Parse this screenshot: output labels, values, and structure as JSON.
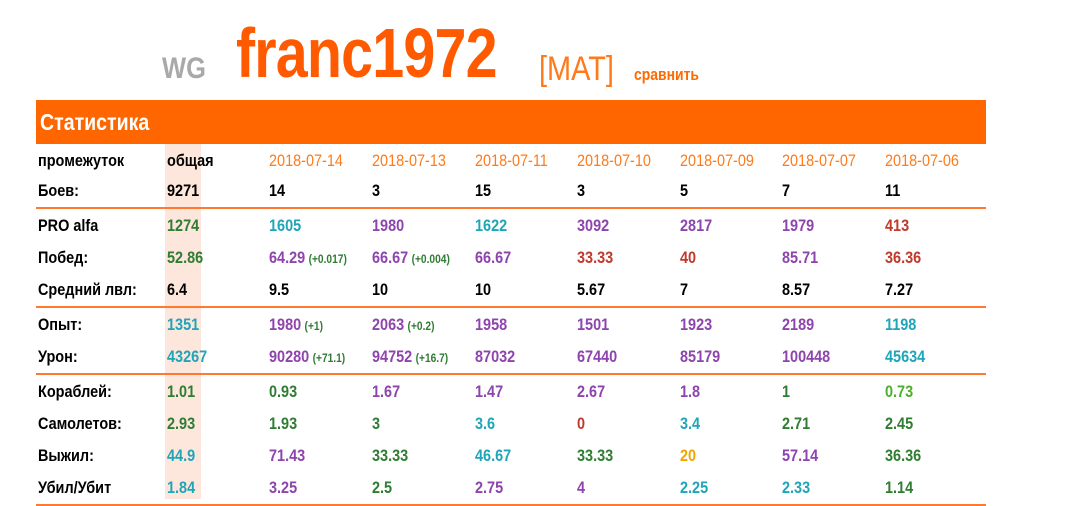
{
  "header": {
    "server": "WG",
    "nickname": "franc1972",
    "clan": "[MAT]",
    "compare_link": "сравнить"
  },
  "stats": {
    "title": "Статистика",
    "period_label": "промежуток",
    "columns": [
      "общая",
      "2018-07-14",
      "2018-07-13",
      "2018-07-11",
      "2018-07-10",
      "2018-07-09",
      "2018-07-07",
      "2018-07-06"
    ],
    "battles": {
      "label": "Боев:",
      "values": [
        "9271",
        "14",
        "3",
        "15",
        "3",
        "5",
        "7",
        "11"
      ]
    },
    "groups": [
      [
        {
          "label": "PRO alfa",
          "cells": [
            {
              "v": "1274",
              "c": "#2e7d32"
            },
            {
              "v": "1605",
              "c": "#1fa5b8"
            },
            {
              "v": "1980",
              "c": "#8e44ad"
            },
            {
              "v": "1622",
              "c": "#1fa5b8"
            },
            {
              "v": "3092",
              "c": "#8e44ad"
            },
            {
              "v": "2817",
              "c": "#8e44ad"
            },
            {
              "v": "1979",
              "c": "#8e44ad"
            },
            {
              "v": "413",
              "c": "#c0392b"
            }
          ]
        },
        {
          "label": "Побед:",
          "cells": [
            {
              "v": "52.86",
              "c": "#2e7d32"
            },
            {
              "v": "64.29",
              "c": "#8e44ad",
              "d": "(+0.017)"
            },
            {
              "v": "66.67",
              "c": "#8e44ad",
              "d": "(+0.004)"
            },
            {
              "v": "66.67",
              "c": "#8e44ad"
            },
            {
              "v": "33.33",
              "c": "#c0392b"
            },
            {
              "v": "40",
              "c": "#c0392b"
            },
            {
              "v": "85.71",
              "c": "#8e44ad"
            },
            {
              "v": "36.36",
              "c": "#c0392b"
            }
          ]
        },
        {
          "label": "Средний лвл:",
          "cells": [
            {
              "v": "6.4",
              "c": "#000"
            },
            {
              "v": "9.5",
              "c": "#000"
            },
            {
              "v": "10",
              "c": "#000"
            },
            {
              "v": "10",
              "c": "#000"
            },
            {
              "v": "5.67",
              "c": "#000"
            },
            {
              "v": "7",
              "c": "#000"
            },
            {
              "v": "8.57",
              "c": "#000"
            },
            {
              "v": "7.27",
              "c": "#000"
            }
          ]
        }
      ],
      [
        {
          "label": "Опыт:",
          "cells": [
            {
              "v": "1351",
              "c": "#1fa5b8"
            },
            {
              "v": "1980",
              "c": "#8e44ad",
              "d": "(+1)"
            },
            {
              "v": "2063",
              "c": "#8e44ad",
              "d": "(+0.2)"
            },
            {
              "v": "1958",
              "c": "#8e44ad"
            },
            {
              "v": "1501",
              "c": "#8e44ad"
            },
            {
              "v": "1923",
              "c": "#8e44ad"
            },
            {
              "v": "2189",
              "c": "#8e44ad"
            },
            {
              "v": "1198",
              "c": "#1fa5b8"
            }
          ]
        },
        {
          "label": "Урон:",
          "cells": [
            {
              "v": "43267",
              "c": "#1fa5b8"
            },
            {
              "v": "90280",
              "c": "#8e44ad",
              "d": "(+71.1)"
            },
            {
              "v": "94752",
              "c": "#8e44ad",
              "d": "(+16.7)"
            },
            {
              "v": "87032",
              "c": "#8e44ad"
            },
            {
              "v": "67440",
              "c": "#8e44ad"
            },
            {
              "v": "85179",
              "c": "#8e44ad"
            },
            {
              "v": "100448",
              "c": "#8e44ad"
            },
            {
              "v": "45634",
              "c": "#1fa5b8"
            }
          ]
        }
      ],
      [
        {
          "label": "Кораблей:",
          "cells": [
            {
              "v": "1.01",
              "c": "#2e7d32"
            },
            {
              "v": "0.93",
              "c": "#2e7d32"
            },
            {
              "v": "1.67",
              "c": "#8e44ad"
            },
            {
              "v": "1.47",
              "c": "#8e44ad"
            },
            {
              "v": "2.67",
              "c": "#8e44ad"
            },
            {
              "v": "1.8",
              "c": "#8e44ad"
            },
            {
              "v": "1",
              "c": "#2e7d32"
            },
            {
              "v": "0.73",
              "c": "#4caf2a"
            }
          ]
        },
        {
          "label": "Самолетов:",
          "cells": [
            {
              "v": "2.93",
              "c": "#2e7d32"
            },
            {
              "v": "1.93",
              "c": "#2e7d32"
            },
            {
              "v": "3",
              "c": "#2e7d32"
            },
            {
              "v": "3.6",
              "c": "#1fa5b8"
            },
            {
              "v": "0",
              "c": "#c0392b"
            },
            {
              "v": "3.4",
              "c": "#1fa5b8"
            },
            {
              "v": "2.71",
              "c": "#2e7d32"
            },
            {
              "v": "2.45",
              "c": "#2e7d32"
            }
          ]
        },
        {
          "label": "Выжил:",
          "cells": [
            {
              "v": "44.9",
              "c": "#1fa5b8"
            },
            {
              "v": "71.43",
              "c": "#8e44ad"
            },
            {
              "v": "33.33",
              "c": "#2e7d32"
            },
            {
              "v": "46.67",
              "c": "#1fa5b8"
            },
            {
              "v": "33.33",
              "c": "#2e7d32"
            },
            {
              "v": "20",
              "c": "#f0a500"
            },
            {
              "v": "57.14",
              "c": "#8e44ad"
            },
            {
              "v": "36.36",
              "c": "#2e7d32"
            }
          ]
        },
        {
          "label": "Убил/Убит",
          "cells": [
            {
              "v": "1.84",
              "c": "#1fa5b8"
            },
            {
              "v": "3.25",
              "c": "#8e44ad"
            },
            {
              "v": "2.5",
              "c": "#2e7d32"
            },
            {
              "v": "2.75",
              "c": "#8e44ad"
            },
            {
              "v": "4",
              "c": "#8e44ad"
            },
            {
              "v": "2.25",
              "c": "#1fa5b8"
            },
            {
              "v": "2.33",
              "c": "#1fa5b8"
            },
            {
              "v": "1.14",
              "c": "#2e7d32"
            }
          ]
        }
      ]
    ]
  }
}
